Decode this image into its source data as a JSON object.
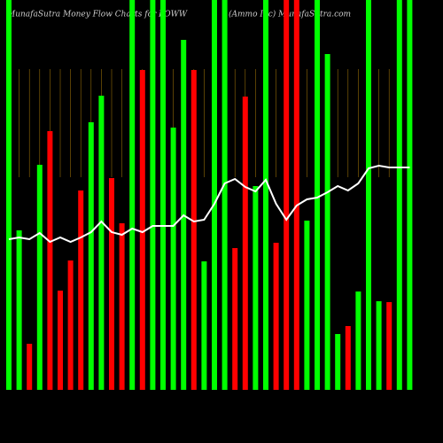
{
  "chart_data": {
    "type": "bar",
    "title": "MunafaSutra  Money Flow  Charts for POWW",
    "subtitle": "(Ammo  Inc) MunafaSutra.com",
    "categories": [
      null,
      null,
      null,
      null,
      null,
      null,
      null,
      null,
      null,
      null,
      null,
      null,
      null,
      null,
      null,
      null,
      null,
      null,
      null,
      null,
      null,
      null,
      null,
      null,
      null,
      null,
      null,
      null,
      null,
      null,
      null,
      null,
      null,
      null,
      null,
      null,
      null,
      null,
      null,
      null
    ],
    "values": [
      440,
      180,
      52,
      254,
      292,
      112,
      146,
      225,
      302,
      332,
      239,
      188,
      440,
      361,
      440,
      440,
      296,
      395,
      361,
      145,
      440,
      440,
      160,
      331,
      230,
      440,
      166,
      440,
      440,
      191,
      440,
      379,
      63,
      72,
      111,
      440,
      100,
      99,
      440,
      440
    ],
    "bar_colors": [
      "#00ff00",
      "#00ff00",
      "#ff0000",
      "#00ff00",
      "#ff0000",
      "#ff0000",
      "#ff0000",
      "#ff0000",
      "#00ff00",
      "#00ff00",
      "#ff0000",
      "#ff0000",
      "#00ff00",
      "#ff0000",
      "#00ff00",
      "#00ff00",
      "#00ff00",
      "#00ff00",
      "#ff0000",
      "#00ff00",
      "#00ff00",
      "#00ff00",
      "#ff0000",
      "#ff0000",
      "#00ff00",
      "#00ff00",
      "#ff0000",
      "#ff0000",
      "#ff0000",
      "#00ff00",
      "#00ff00",
      "#00ff00",
      "#00ff00",
      "#ff0000",
      "#00ff00",
      "#00ff00",
      "#00ff00",
      "#ff0000",
      "#00ff00",
      "#00ff00"
    ],
    "line_values": [
      170,
      172,
      170,
      177,
      167,
      172,
      167,
      172,
      178,
      190,
      178,
      175,
      182,
      178,
      185,
      185,
      185,
      197,
      190,
      192,
      210,
      233,
      238,
      229,
      224,
      237,
      210,
      192,
      208,
      215,
      217,
      223,
      230,
      225,
      233,
      250,
      253,
      251,
      251,
      251
    ],
    "line_color": "#ffffff",
    "guide_color": "#b8860b",
    "ylim": [
      0,
      440
    ]
  }
}
